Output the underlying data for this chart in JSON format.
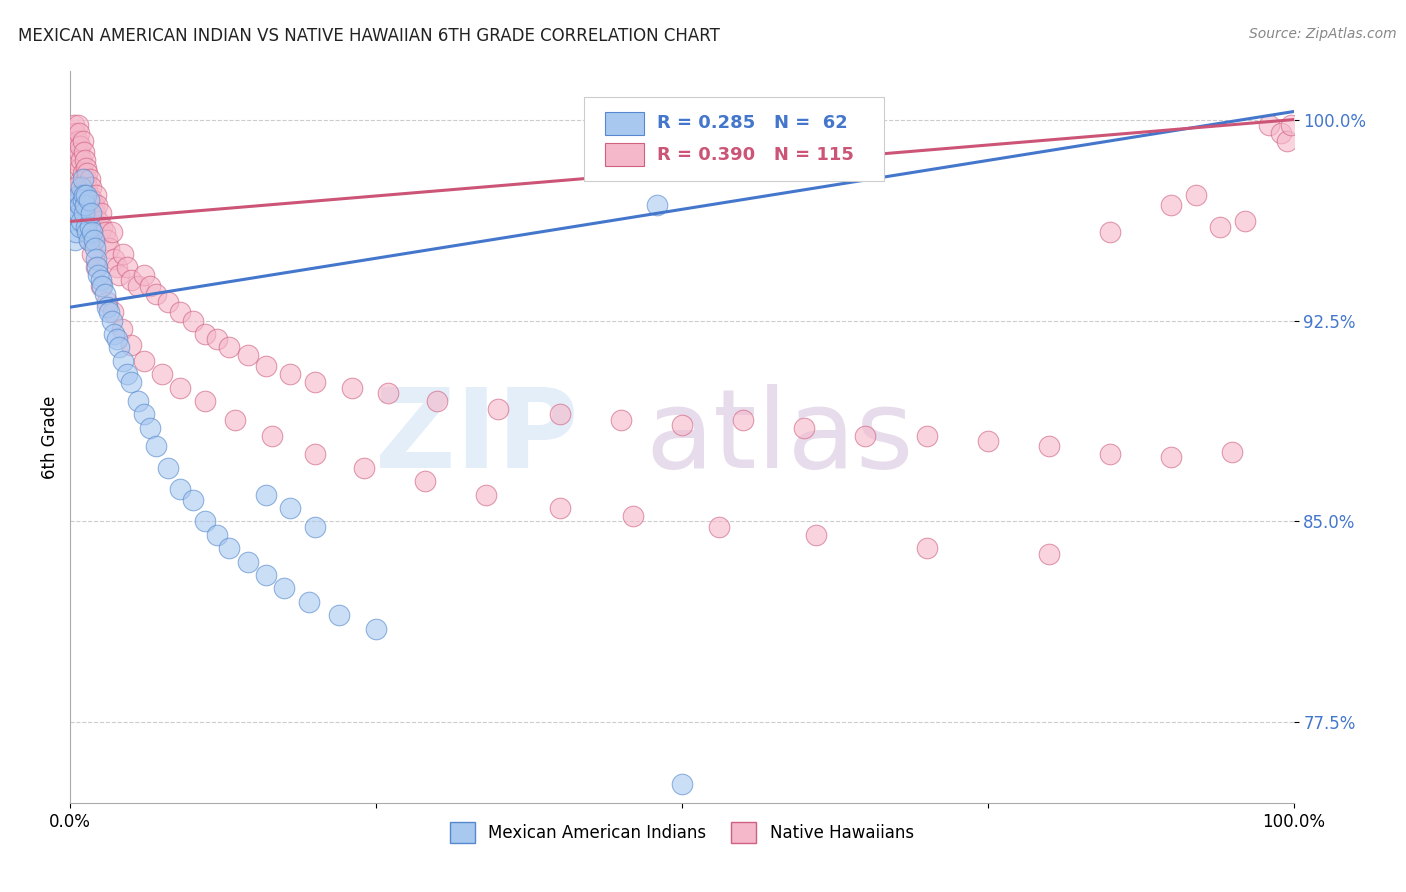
{
  "title": "MEXICAN AMERICAN INDIAN VS NATIVE HAWAIIAN 6TH GRADE CORRELATION CHART",
  "source": "Source: ZipAtlas.com",
  "ylabel": "6th Grade",
  "xlim": [
    0.0,
    1.0
  ],
  "ylim": [
    0.745,
    1.018
  ],
  "x_ticks": [
    0.0,
    0.25,
    0.5,
    0.75,
    1.0
  ],
  "x_tick_labels": [
    "0.0%",
    "",
    "",
    "",
    "100.0%"
  ],
  "y_ticks": [
    0.775,
    0.85,
    0.925,
    1.0
  ],
  "y_tick_labels": [
    "77.5%",
    "85.0%",
    "92.5%",
    "100.0%"
  ],
  "blue_R": 0.285,
  "blue_N": 62,
  "pink_R": 0.39,
  "pink_N": 115,
  "blue_fill": "#A8C8F0",
  "pink_fill": "#F5B8CA",
  "blue_edge": "#5588CC",
  "pink_edge": "#D06080",
  "blue_line": "#4477CC",
  "pink_line": "#CC5577",
  "blue_legend": "Mexican American Indians",
  "pink_legend": "Native Hawaiians",
  "background_color": "#ffffff",
  "grid_color": "#cccccc",
  "ytick_color": "#4477CC",
  "title_color": "#222222",
  "source_color": "#888888",
  "blue_x": [
    0.003,
    0.004,
    0.005,
    0.005,
    0.006,
    0.007,
    0.007,
    0.008,
    0.008,
    0.009,
    0.009,
    0.01,
    0.01,
    0.011,
    0.011,
    0.012,
    0.013,
    0.013,
    0.014,
    0.015,
    0.015,
    0.016,
    0.017,
    0.018,
    0.019,
    0.02,
    0.021,
    0.022,
    0.023,
    0.025,
    0.026,
    0.028,
    0.03,
    0.032,
    0.034,
    0.036,
    0.038,
    0.04,
    0.043,
    0.046,
    0.05,
    0.055,
    0.06,
    0.065,
    0.07,
    0.08,
    0.09,
    0.1,
    0.11,
    0.12,
    0.13,
    0.145,
    0.16,
    0.175,
    0.195,
    0.22,
    0.25,
    0.16,
    0.18,
    0.2,
    0.48,
    0.5
  ],
  "blue_y": [
    0.968,
    0.955,
    0.963,
    0.958,
    0.97,
    0.972,
    0.965,
    0.968,
    0.96,
    0.975,
    0.962,
    0.978,
    0.97,
    0.965,
    0.972,
    0.968,
    0.96,
    0.972,
    0.958,
    0.97,
    0.955,
    0.96,
    0.965,
    0.958,
    0.955,
    0.952,
    0.948,
    0.945,
    0.942,
    0.94,
    0.938,
    0.935,
    0.93,
    0.928,
    0.925,
    0.92,
    0.918,
    0.915,
    0.91,
    0.905,
    0.902,
    0.895,
    0.89,
    0.885,
    0.878,
    0.87,
    0.862,
    0.858,
    0.85,
    0.845,
    0.84,
    0.835,
    0.83,
    0.825,
    0.82,
    0.815,
    0.81,
    0.86,
    0.855,
    0.848,
    0.968,
    0.752
  ],
  "pink_x": [
    0.003,
    0.004,
    0.005,
    0.005,
    0.006,
    0.006,
    0.007,
    0.007,
    0.008,
    0.008,
    0.009,
    0.009,
    0.01,
    0.01,
    0.011,
    0.011,
    0.012,
    0.012,
    0.013,
    0.013,
    0.014,
    0.014,
    0.015,
    0.015,
    0.016,
    0.016,
    0.017,
    0.018,
    0.019,
    0.02,
    0.021,
    0.022,
    0.023,
    0.024,
    0.025,
    0.026,
    0.028,
    0.03,
    0.032,
    0.034,
    0.036,
    0.038,
    0.04,
    0.043,
    0.046,
    0.05,
    0.055,
    0.06,
    0.065,
    0.07,
    0.08,
    0.09,
    0.1,
    0.11,
    0.12,
    0.13,
    0.145,
    0.16,
    0.18,
    0.2,
    0.23,
    0.26,
    0.3,
    0.35,
    0.4,
    0.45,
    0.5,
    0.55,
    0.6,
    0.65,
    0.7,
    0.75,
    0.8,
    0.85,
    0.9,
    0.95,
    0.98,
    0.99,
    0.995,
    0.998,
    0.003,
    0.005,
    0.007,
    0.009,
    0.011,
    0.013,
    0.015,
    0.018,
    0.021,
    0.025,
    0.03,
    0.035,
    0.042,
    0.05,
    0.06,
    0.075,
    0.09,
    0.11,
    0.135,
    0.165,
    0.2,
    0.24,
    0.29,
    0.34,
    0.4,
    0.46,
    0.53,
    0.61,
    0.7,
    0.8,
    0.85,
    0.9,
    0.92,
    0.94,
    0.96
  ],
  "pink_y": [
    0.998,
    0.995,
    0.99,
    0.985,
    0.998,
    0.992,
    0.988,
    0.995,
    0.982,
    0.99,
    0.985,
    0.978,
    0.992,
    0.98,
    0.988,
    0.975,
    0.985,
    0.97,
    0.982,
    0.978,
    0.975,
    0.98,
    0.972,
    0.968,
    0.978,
    0.965,
    0.975,
    0.97,
    0.968,
    0.965,
    0.972,
    0.968,
    0.962,
    0.958,
    0.965,
    0.96,
    0.958,
    0.955,
    0.952,
    0.958,
    0.948,
    0.945,
    0.942,
    0.95,
    0.945,
    0.94,
    0.938,
    0.942,
    0.938,
    0.935,
    0.932,
    0.928,
    0.925,
    0.92,
    0.918,
    0.915,
    0.912,
    0.908,
    0.905,
    0.902,
    0.9,
    0.898,
    0.895,
    0.892,
    0.89,
    0.888,
    0.886,
    0.888,
    0.885,
    0.882,
    0.882,
    0.88,
    0.878,
    0.875,
    0.874,
    0.876,
    0.998,
    0.995,
    0.992,
    0.998,
    0.97,
    0.975,
    0.968,
    0.972,
    0.965,
    0.96,
    0.955,
    0.95,
    0.945,
    0.938,
    0.932,
    0.928,
    0.922,
    0.916,
    0.91,
    0.905,
    0.9,
    0.895,
    0.888,
    0.882,
    0.875,
    0.87,
    0.865,
    0.86,
    0.855,
    0.852,
    0.848,
    0.845,
    0.84,
    0.838,
    0.958,
    0.968,
    0.972,
    0.96,
    0.962
  ],
  "blue_line_x": [
    0.0,
    1.0
  ],
  "blue_line_y": [
    0.93,
    1.003
  ],
  "pink_line_x": [
    0.0,
    1.0
  ],
  "pink_line_y": [
    0.962,
    1.0
  ]
}
